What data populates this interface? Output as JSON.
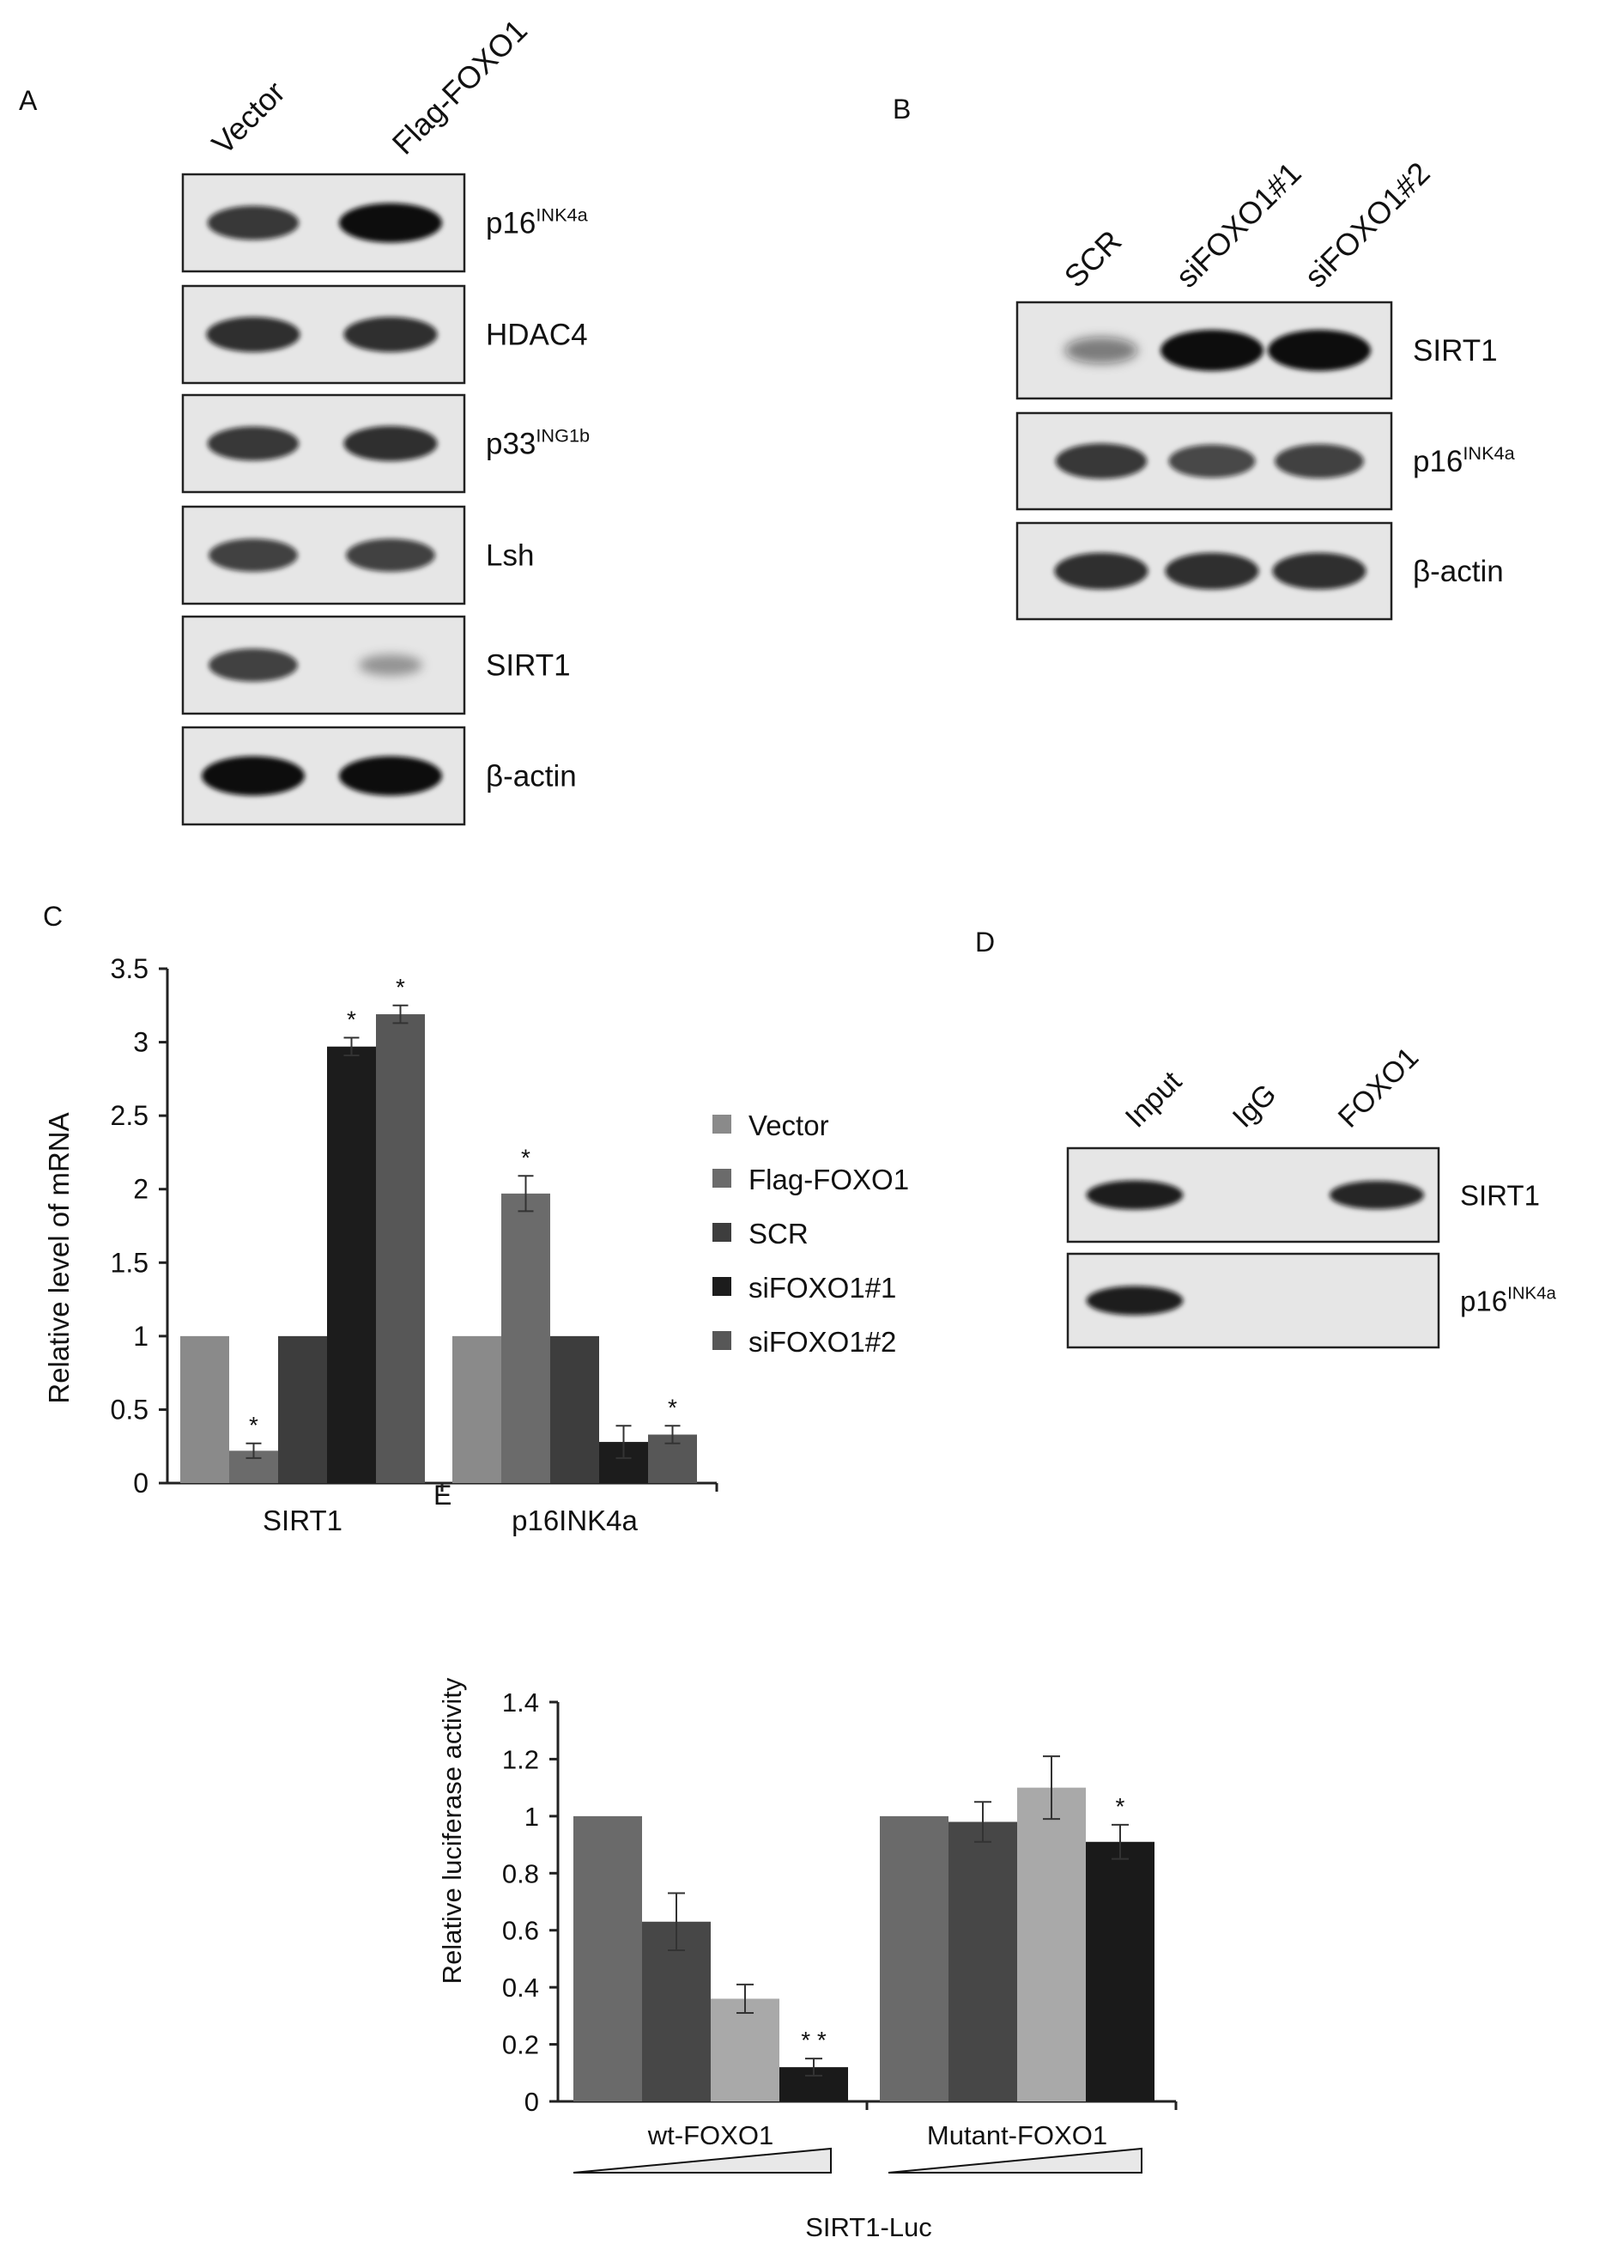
{
  "panels": {
    "A": {
      "letter": "A",
      "lanes": [
        "Vector",
        "Flag-FOXO1"
      ],
      "blots": [
        {
          "label": "p16",
          "sup": "INK4a",
          "bands": [
            0.75,
            1.0
          ]
        },
        {
          "label": "HDAC4",
          "sup": "",
          "bands": [
            0.8,
            0.8
          ]
        },
        {
          "label": "p33",
          "sup": "ING1b",
          "bands": [
            0.75,
            0.8
          ]
        },
        {
          "label": "Lsh",
          "sup": "",
          "bands": [
            0.7,
            0.7
          ]
        },
        {
          "label": "SIRT1",
          "sup": "",
          "bands": [
            0.7,
            0.15
          ]
        },
        {
          "label": "β-actin",
          "sup": "",
          "bands": [
            1.0,
            1.0
          ]
        }
      ]
    },
    "B": {
      "letter": "B",
      "lanes": [
        "SCR",
        "siFOXO1#1",
        "siFOXO1#2"
      ],
      "blots": [
        {
          "label": "SIRT1",
          "sup": "",
          "bands": [
            0.35,
            1.0,
            1.0
          ]
        },
        {
          "label": "p16",
          "sup": "INK4a",
          "bands": [
            0.75,
            0.65,
            0.7
          ]
        },
        {
          "label": "β-actin",
          "sup": "",
          "bands": [
            0.8,
            0.8,
            0.8
          ]
        }
      ]
    },
    "D": {
      "letter": "D",
      "lanes": [
        "Input",
        "IgG",
        "FOXO1"
      ],
      "blots": [
        {
          "label": "SIRT1",
          "sup": "",
          "bands": [
            0.9,
            0,
            0.85
          ]
        },
        {
          "label": "p16",
          "sup": "INK4a",
          "bands": [
            0.9,
            0,
            0
          ]
        }
      ]
    }
  },
  "chart_data": [
    {
      "panel": "C",
      "type": "bar",
      "ylabel": "Relative level of mRNA",
      "ylim": [
        0,
        3.5
      ],
      "yticks": [
        "0",
        "0.5",
        "1",
        "1.5",
        "2",
        "2.5",
        "3",
        "3.5"
      ],
      "categories": [
        "SIRT1",
        "p16INK4a"
      ],
      "legend_position": "right",
      "series": [
        {
          "name": "Vector",
          "color": "#8a8a8a",
          "values": [
            1.0,
            1.0
          ],
          "errors": [
            0,
            0
          ],
          "sig": [
            false,
            false
          ]
        },
        {
          "name": "Flag-FOXO1",
          "color": "#6b6b6b",
          "values": [
            0.22,
            1.97
          ],
          "errors": [
            0.05,
            0.12
          ],
          "sig": [
            true,
            true
          ]
        },
        {
          "name": "SCR",
          "color": "#3d3d3d",
          "values": [
            1.0,
            1.0
          ],
          "errors": [
            0,
            0
          ],
          "sig": [
            false,
            false
          ]
        },
        {
          "name": "siFOXO1#1",
          "color": "#1c1c1c",
          "values": [
            2.97,
            0.28
          ],
          "errors": [
            0.06,
            0.11
          ],
          "sig": [
            true,
            false
          ]
        },
        {
          "name": "siFOXO1#2",
          "color": "#575757",
          "values": [
            3.19,
            0.33
          ],
          "errors": [
            0.06,
            0.06
          ],
          "sig": [
            true,
            true
          ]
        }
      ],
      "sig_mark": "*"
    },
    {
      "panel": "E",
      "type": "bar",
      "ylabel": "Relative luciferase activity",
      "xlabel": "SIRT1-Luc",
      "ylim": [
        0,
        1.4
      ],
      "yticks": [
        "0",
        "0.2",
        "0.4",
        "0.6",
        "0.8",
        "1",
        "1.2",
        "1.4"
      ],
      "categories": [
        "wt-FOXO1",
        "Mutant-FOXO1"
      ],
      "bars": [
        [
          {
            "value": 1.0,
            "error": 0,
            "color": "#6a6a6a",
            "sig": ""
          },
          {
            "value": 0.63,
            "error": 0.1,
            "color": "#474747",
            "sig": ""
          },
          {
            "value": 0.36,
            "error": 0.05,
            "color": "#a9a9a9",
            "sig": ""
          },
          {
            "value": 0.12,
            "error": 0.03,
            "color": "#1a1a1a",
            "sig": "* *"
          }
        ],
        [
          {
            "value": 1.0,
            "error": 0,
            "color": "#6a6a6a",
            "sig": ""
          },
          {
            "value": 0.98,
            "error": 0.07,
            "color": "#474747",
            "sig": ""
          },
          {
            "value": 1.1,
            "error": 0.11,
            "color": "#a9a9a9",
            "sig": ""
          },
          {
            "value": 0.91,
            "error": 0.06,
            "color": "#1a1a1a",
            "sig": "*"
          }
        ]
      ]
    }
  ]
}
